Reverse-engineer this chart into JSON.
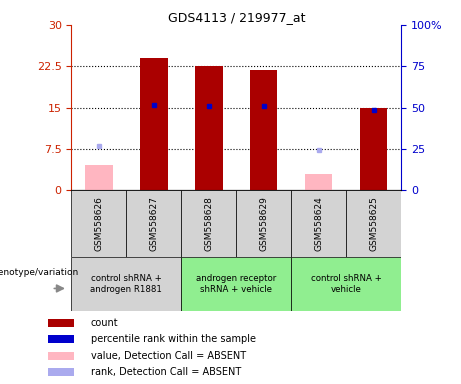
{
  "title": "GDS4113 / 219977_at",
  "samples": [
    "GSM558626",
    "GSM558627",
    "GSM558628",
    "GSM558629",
    "GSM558624",
    "GSM558625"
  ],
  "count_values": [
    null,
    24.0,
    22.5,
    21.8,
    null,
    15.0
  ],
  "count_absent_values": [
    4.5,
    null,
    null,
    null,
    3.0,
    null
  ],
  "rank_values": [
    null,
    15.5,
    15.2,
    15.3,
    null,
    14.5
  ],
  "rank_absent_values": [
    8.0,
    null,
    null,
    null,
    7.2,
    null
  ],
  "ylim_left": [
    0,
    30
  ],
  "ylim_right": [
    0,
    100
  ],
  "yticks_left": [
    0,
    7.5,
    15,
    22.5,
    30
  ],
  "yticks_right": [
    0,
    25,
    50,
    75,
    100
  ],
  "ytick_labels_left": [
    "0",
    "7.5",
    "15",
    "22.5",
    "30"
  ],
  "ytick_labels_right": [
    "0",
    "25",
    "50",
    "75",
    "100%"
  ],
  "bar_width": 0.5,
  "bar_color_count": "#aa0000",
  "bar_color_absent": "#ffb6c1",
  "rank_color": "#0000cc",
  "rank_absent_color": "#aaaaee",
  "bg_color": "#ffffff",
  "left_label_color": "#cc2200",
  "right_label_color": "#0000cc",
  "sample_bg": "#d3d3d3",
  "group1_color": "#d3d3d3",
  "group2_color": "#90ee90",
  "group3_color": "#90ee90",
  "group1_label": "control shRNA +\nandrogen R1881",
  "group2_label": "androgen receptor\nshRNA + vehicle",
  "group3_label": "control shRNA +\nvehicle",
  "geno_label": "genotype/variation",
  "legend_items": [
    {
      "color": "#aa0000",
      "text": "count"
    },
    {
      "color": "#0000cc",
      "text": "percentile rank within the sample"
    },
    {
      "color": "#ffb6c1",
      "text": "value, Detection Call = ABSENT"
    },
    {
      "color": "#aaaaee",
      "text": "rank, Detection Call = ABSENT"
    }
  ]
}
